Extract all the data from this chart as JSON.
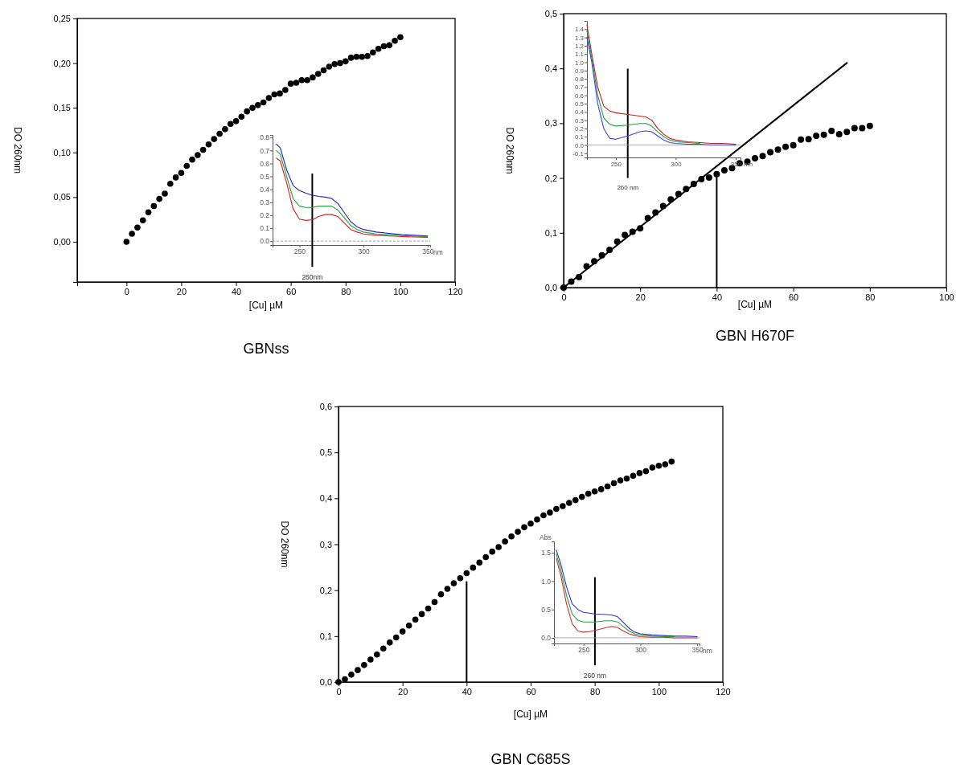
{
  "chart_data": [
    {
      "type": "scatter",
      "title": "GBNss",
      "xlabel": "[Cu] µM",
      "ylabel": "DO 260nm",
      "marker": "circle",
      "xlim": [
        -18,
        120
      ],
      "xticks": [
        0,
        20,
        40,
        60,
        80,
        100,
        120
      ],
      "ylim": [
        -0.045,
        0.25
      ],
      "yticks": [
        {
          "value": 0,
          "label": "0,00"
        },
        {
          "value": 0.05,
          "label": "0,05"
        },
        {
          "value": 0.1,
          "label": "0,10"
        },
        {
          "value": 0.15,
          "label": "0,15"
        },
        {
          "value": 0.2,
          "label": "0,20"
        },
        {
          "value": 0.25,
          "label": "0,25"
        }
      ],
      "series": [
        {
          "color": "#000000",
          "x": [
            0,
            2,
            4,
            6,
            8,
            10,
            12,
            14,
            16,
            18,
            20,
            22,
            24,
            26,
            28,
            30,
            32,
            34,
            36,
            38,
            40,
            42,
            44,
            46,
            48,
            50,
            52,
            54,
            56,
            58,
            60,
            62,
            64,
            66,
            68,
            70,
            72,
            74,
            76,
            78,
            80,
            82,
            84,
            86,
            88,
            90,
            92,
            94,
            96,
            98,
            100
          ],
          "values": [
            0,
            0.009,
            0.016,
            0.024,
            0.033,
            0.04,
            0.048,
            0.054,
            0.065,
            0.072,
            0.077,
            0.085,
            0.092,
            0.097,
            0.103,
            0.109,
            0.115,
            0.121,
            0.126,
            0.132,
            0.135,
            0.14,
            0.146,
            0.15,
            0.153,
            0.156,
            0.161,
            0.165,
            0.166,
            0.17,
            0.177,
            0.178,
            0.181,
            0.181,
            0.184,
            0.188,
            0.192,
            0.196,
            0.199,
            0.2,
            0.202,
            0.206,
            0.207,
            0.207,
            0.208,
            0.212,
            0.216,
            0.219,
            0.22,
            0.225,
            0.229
          ]
        }
      ]
    },
    {
      "type": "line",
      "xlabel": "nm",
      "xlim": [
        229,
        352
      ],
      "xticks": [
        250,
        300,
        350
      ],
      "ylim": [
        -0.03,
        0.82
      ],
      "yticks": [
        {
          "value": 0,
          "label": "0.0"
        },
        {
          "value": 0.1,
          "label": "0.1"
        },
        {
          "value": 0.2,
          "label": "0.2"
        },
        {
          "value": 0.3,
          "label": "0.3"
        },
        {
          "value": 0.4,
          "label": "0.4"
        },
        {
          "value": 0.5,
          "label": "0.5"
        },
        {
          "value": 0.6,
          "label": "0.6"
        },
        {
          "value": 0.7,
          "label": "0.7"
        },
        {
          "value": 0.8,
          "label": "0.8"
        }
      ],
      "ref_lines": [
        {
          "axis": "x",
          "value": 260,
          "label": "260nm",
          "color": "#000000"
        },
        {
          "axis": "y",
          "value": 0,
          "line_style": "dashed",
          "color": "#888888"
        }
      ],
      "series": [
        {
          "color": "#2020c0",
          "x": [
            232,
            235,
            240,
            245,
            250,
            255,
            260,
            265,
            270,
            275,
            280,
            285,
            290,
            295,
            300,
            310,
            320,
            330,
            340,
            350
          ],
          "values": [
            0.75,
            0.72,
            0.55,
            0.43,
            0.39,
            0.37,
            0.355,
            0.345,
            0.34,
            0.33,
            0.29,
            0.22,
            0.15,
            0.11,
            0.09,
            0.07,
            0.06,
            0.05,
            0.045,
            0.04
          ]
        },
        {
          "color": "#20a040",
          "x": [
            232,
            235,
            240,
            245,
            250,
            255,
            260,
            265,
            270,
            275,
            280,
            285,
            290,
            295,
            300,
            310,
            320,
            330,
            340,
            350
          ],
          "values": [
            0.7,
            0.67,
            0.5,
            0.33,
            0.27,
            0.26,
            0.26,
            0.27,
            0.27,
            0.27,
            0.24,
            0.18,
            0.12,
            0.09,
            0.07,
            0.055,
            0.05,
            0.043,
            0.038,
            0.035
          ]
        },
        {
          "color": "#d02020",
          "x": [
            232,
            235,
            240,
            245,
            250,
            255,
            260,
            265,
            270,
            275,
            280,
            285,
            290,
            295,
            300,
            310,
            320,
            330,
            340,
            350
          ],
          "values": [
            0.64,
            0.62,
            0.45,
            0.25,
            0.17,
            0.16,
            0.165,
            0.19,
            0.205,
            0.205,
            0.19,
            0.14,
            0.09,
            0.07,
            0.055,
            0.045,
            0.04,
            0.035,
            0.032,
            0.03
          ]
        }
      ]
    },
    {
      "type": "scatter",
      "title": "GBN H670F",
      "xlabel": "[Cu] µM",
      "ylabel": "DO 260nm",
      "marker": "circle",
      "xlim": [
        0,
        100
      ],
      "xticks": [
        0,
        20,
        40,
        60,
        80,
        100
      ],
      "ylim": [
        0,
        0.5
      ],
      "yticks": [
        {
          "value": 0,
          "label": "0,0"
        },
        {
          "value": 0.1,
          "label": "0,1"
        },
        {
          "value": 0.2,
          "label": "0,2"
        },
        {
          "value": 0.3,
          "label": "0,3"
        },
        {
          "value": 0.4,
          "label": "0,4"
        },
        {
          "value": 0.5,
          "label": "0,5"
        }
      ],
      "series": [
        {
          "color": "#000000",
          "x": [
            0,
            2,
            4,
            6,
            8,
            10,
            12,
            14,
            16,
            18,
            20,
            22,
            24,
            26,
            28,
            30,
            32,
            34,
            36,
            38,
            40,
            42,
            44,
            46,
            48,
            50,
            52,
            54,
            56,
            58,
            60,
            62,
            64,
            66,
            68,
            70,
            72,
            74,
            76,
            78,
            80
          ],
          "values": [
            0,
            0.011,
            0.019,
            0.039,
            0.048,
            0.059,
            0.069,
            0.084,
            0.096,
            0.102,
            0.108,
            0.127,
            0.137,
            0.149,
            0.161,
            0.171,
            0.18,
            0.189,
            0.198,
            0.201,
            0.207,
            0.214,
            0.218,
            0.227,
            0.23,
            0.236,
            0.24,
            0.247,
            0.252,
            0.257,
            0.26,
            0.27,
            0.271,
            0.277,
            0.279,
            0.286,
            0.28,
            0.284,
            0.291,
            0.291,
            0.295
          ]
        },
        {
          "type": "line",
          "marker": "none",
          "color": "#000000",
          "x": [
            0,
            74
          ],
          "values": [
            0,
            0.41
          ]
        },
        {
          "type": "line",
          "marker": "none",
          "color": "#000000",
          "x": [
            40,
            40
          ],
          "values": [
            0,
            0.205
          ]
        }
      ]
    },
    {
      "type": "line",
      "xlabel": "nm",
      "xlim": [
        226,
        354
      ],
      "xticks": [
        250,
        300,
        350
      ],
      "ylim": [
        -0.15,
        1.5
      ],
      "yticks": [
        {
          "value": -0.1,
          "label": "-0.1"
        },
        {
          "value": 0,
          "label": "0.0"
        },
        {
          "value": 0.1,
          "label": "0.1"
        },
        {
          "value": 0.2,
          "label": "0.2"
        },
        {
          "value": 0.3,
          "label": "0.3"
        },
        {
          "value": 0.4,
          "label": "0.4"
        },
        {
          "value": 0.5,
          "label": "0.5"
        },
        {
          "value": 0.6,
          "label": "0.6"
        },
        {
          "value": 0.7,
          "label": "0.7"
        },
        {
          "value": 0.8,
          "label": "0.8"
        },
        {
          "value": 0.9,
          "label": "0.9"
        },
        {
          "value": 1.0,
          "label": "1.0"
        },
        {
          "value": 1.1,
          "label": "1.1"
        },
        {
          "value": 1.2,
          "label": "1.2"
        },
        {
          "value": 1.3,
          "label": "1.3"
        },
        {
          "value": 1.4,
          "label": "1.4"
        }
      ],
      "ref_lines": [
        {
          "axis": "x",
          "value": 260,
          "label": "260 nm",
          "color": "#000000"
        },
        {
          "axis": "y",
          "value": 0,
          "color": "#999999"
        }
      ],
      "series": [
        {
          "color": "#c02020",
          "x": [
            226,
            230,
            235,
            240,
            245,
            250,
            260,
            270,
            275,
            280,
            285,
            290,
            295,
            300,
            310,
            320,
            330,
            340,
            350
          ],
          "values": [
            1.45,
            1.1,
            0.7,
            0.47,
            0.41,
            0.39,
            0.37,
            0.35,
            0.34,
            0.3,
            0.2,
            0.13,
            0.08,
            0.06,
            0.04,
            0.03,
            0.02,
            0.02,
            0.01
          ]
        },
        {
          "color": "#20a040",
          "x": [
            226,
            230,
            235,
            240,
            245,
            250,
            260,
            270,
            275,
            280,
            285,
            290,
            295,
            300,
            310,
            320
          ],
          "values": [
            1.38,
            1.05,
            0.6,
            0.33,
            0.25,
            0.23,
            0.24,
            0.26,
            0.26,
            0.23,
            0.16,
            0.1,
            0.06,
            0.04,
            0.03,
            0.02
          ]
        },
        {
          "color": "#4040e0",
          "x": [
            226,
            230,
            235,
            240,
            245,
            250,
            255,
            260,
            270,
            275,
            280,
            285,
            290,
            295,
            300,
            310,
            320,
            330,
            340,
            350
          ],
          "values": [
            1.3,
            1.0,
            0.5,
            0.2,
            0.08,
            0.07,
            0.09,
            0.11,
            0.16,
            0.17,
            0.16,
            0.11,
            0.06,
            0.03,
            0.02,
            0.01,
            0.01,
            0,
            0,
            0
          ]
        }
      ]
    },
    {
      "type": "scatter",
      "title": "GBN C685S",
      "xlabel": "[Cu] µM",
      "ylabel": "DO 260nm",
      "marker": "circle",
      "xlim": [
        0,
        120
      ],
      "xticks": [
        0,
        20,
        40,
        60,
        80,
        100,
        120
      ],
      "ylim": [
        0,
        0.6
      ],
      "yticks": [
        {
          "value": 0,
          "label": "0,0"
        },
        {
          "value": 0.1,
          "label": "0,1"
        },
        {
          "value": 0.2,
          "label": "0,2"
        },
        {
          "value": 0.3,
          "label": "0,3"
        },
        {
          "value": 0.4,
          "label": "0,4"
        },
        {
          "value": 0.5,
          "label": "0,5"
        },
        {
          "value": 0.6,
          "label": "0,6"
        }
      ],
      "series": [
        {
          "color": "#000000",
          "x": [
            0,
            2,
            4,
            6,
            8,
            10,
            12,
            14,
            16,
            18,
            20,
            22,
            24,
            26,
            28,
            30,
            32,
            34,
            36,
            38,
            40,
            42,
            44,
            46,
            48,
            50,
            52,
            54,
            56,
            58,
            60,
            62,
            64,
            66,
            68,
            70,
            72,
            74,
            76,
            78,
            80,
            82,
            84,
            86,
            88,
            90,
            92,
            94,
            96,
            98,
            100,
            102,
            104
          ],
          "values": [
            0,
            0.006,
            0.016,
            0.026,
            0.037,
            0.049,
            0.06,
            0.073,
            0.086,
            0.097,
            0.11,
            0.123,
            0.136,
            0.148,
            0.16,
            0.174,
            0.191,
            0.203,
            0.215,
            0.226,
            0.237,
            0.249,
            0.26,
            0.272,
            0.284,
            0.294,
            0.306,
            0.317,
            0.327,
            0.337,
            0.345,
            0.354,
            0.363,
            0.369,
            0.377,
            0.383,
            0.39,
            0.396,
            0.403,
            0.41,
            0.415,
            0.42,
            0.426,
            0.433,
            0.439,
            0.443,
            0.449,
            0.455,
            0.459,
            0.467,
            0.471,
            0.474,
            0.48
          ]
        },
        {
          "type": "line",
          "marker": "none",
          "color": "#000000",
          "x": [
            40,
            40
          ],
          "values": [
            0,
            0.218
          ]
        }
      ]
    },
    {
      "type": "line",
      "xlabel": "nm",
      "ylabel": "Abs",
      "xlim": [
        224,
        352
      ],
      "xticks": [
        250,
        300,
        350
      ],
      "ylim": [
        -0.1,
        1.7
      ],
      "yticks": [
        {
          "value": 0,
          "label": "0.0"
        },
        {
          "value": 0.5,
          "label": "0.5"
        },
        {
          "value": 1.0,
          "label": "1.0"
        },
        {
          "value": 1.5,
          "label": "1.5"
        }
      ],
      "ref_lines": [
        {
          "axis": "x",
          "value": 260,
          "label": "260 nm",
          "color": "#000000"
        },
        {
          "axis": "y",
          "value": 0,
          "color": "#999999"
        }
      ],
      "series": [
        {
          "color": "#3030d0",
          "x": [
            226,
            230,
            235,
            240,
            245,
            250,
            260,
            270,
            275,
            280,
            285,
            290,
            295,
            300,
            310,
            320,
            330,
            340,
            350
          ],
          "values": [
            1.55,
            1.3,
            0.9,
            0.6,
            0.5,
            0.45,
            0.42,
            0.41,
            0.4,
            0.37,
            0.27,
            0.17,
            0.1,
            0.07,
            0.05,
            0.04,
            0.03,
            0.03,
            0.02
          ]
        },
        {
          "color": "#20a040",
          "x": [
            226,
            230,
            235,
            240,
            245,
            250,
            260,
            270,
            275,
            280,
            285,
            290,
            295,
            300,
            310,
            320,
            330
          ],
          "values": [
            1.48,
            1.2,
            0.75,
            0.42,
            0.31,
            0.28,
            0.28,
            0.3,
            0.3,
            0.28,
            0.2,
            0.12,
            0.07,
            0.05,
            0.03,
            0.02,
            0.02
          ]
        },
        {
          "color": "#d03030",
          "x": [
            226,
            230,
            235,
            240,
            245,
            250,
            255,
            260,
            270,
            275,
            280,
            285,
            290,
            295,
            300,
            310,
            320,
            330,
            340,
            350
          ],
          "values": [
            1.4,
            1.1,
            0.6,
            0.25,
            0.12,
            0.1,
            0.11,
            0.13,
            0.18,
            0.2,
            0.18,
            0.12,
            0.07,
            0.04,
            0.02,
            0.01,
            0.01,
            0,
            0,
            0
          ]
        }
      ]
    }
  ]
}
